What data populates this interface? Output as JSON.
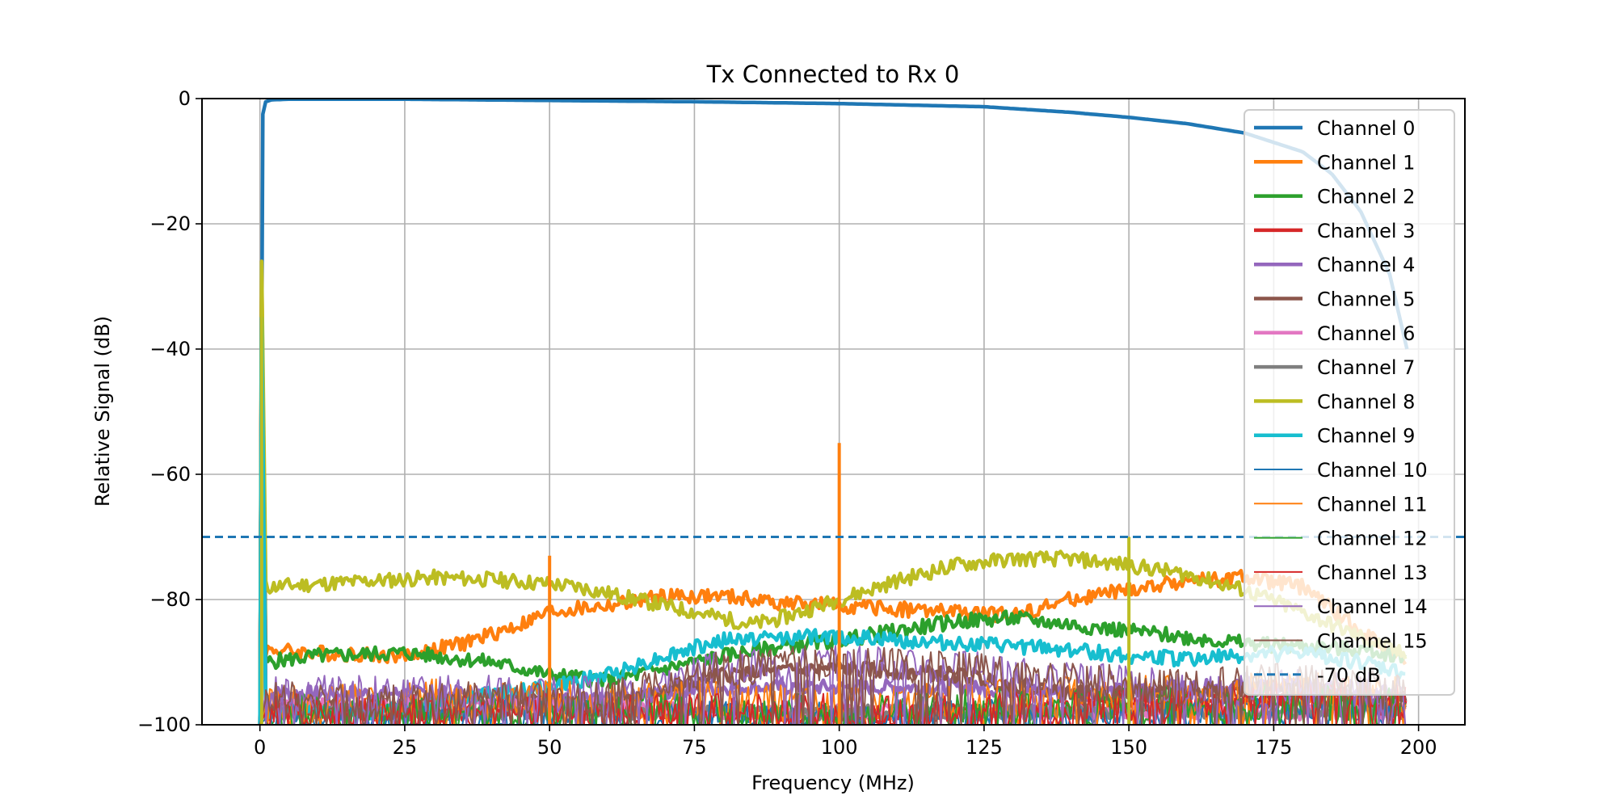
{
  "chart_data": {
    "type": "line",
    "title": "Tx Connected to Rx 0",
    "xlabel": "Frequency (MHz)",
    "ylabel": "Relative Signal (dB)",
    "xlim": [
      -10,
      208
    ],
    "ylim": [
      -100,
      0
    ],
    "xticks": [
      0,
      25,
      50,
      75,
      100,
      125,
      150,
      175,
      200
    ],
    "yticks": [
      -100,
      -80,
      -60,
      -40,
      -20,
      0
    ],
    "xtick_labels": [
      "0",
      "25",
      "50",
      "75",
      "100",
      "125",
      "150",
      "175",
      "200"
    ],
    "ytick_labels": [
      "−100",
      "−80",
      "−60",
      "−40",
      "−20",
      "0"
    ],
    "grid": true,
    "legend_position": "right, top-to-bottom",
    "reference_line": {
      "name": "-70 dB",
      "y": -70,
      "style": "dashed",
      "color": "#1f77b4"
    },
    "series": [
      {
        "name": "Channel 0",
        "color": "#1f77b4",
        "width": 4.5,
        "x": [
          0,
          0.2,
          0.5,
          1,
          2,
          5,
          10,
          25,
          50,
          75,
          100,
          125,
          140,
          150,
          160,
          170,
          180,
          185,
          190,
          195,
          198
        ],
        "y": [
          -100,
          -40,
          -2,
          -0.5,
          -0.2,
          -0.1,
          -0.1,
          -0.1,
          -0.3,
          -0.5,
          -0.8,
          -1.3,
          -2.2,
          -3,
          -4,
          -5.5,
          -8.5,
          -12,
          -18,
          -28,
          -40
        ]
      },
      {
        "name": "Channel 1",
        "color": "#ff7f0e",
        "width": 4.5,
        "x": [
          0,
          0.3,
          1,
          10,
          25,
          35,
          45,
          50,
          60,
          70,
          80,
          90,
          100,
          110,
          120,
          130,
          140,
          150,
          160,
          170,
          180,
          190,
          198
        ],
        "y": [
          -100,
          -26,
          -88,
          -88.5,
          -89,
          -87,
          -84,
          -82,
          -81,
          -79.5,
          -79.5,
          -80.5,
          -81,
          -81.5,
          -82,
          -82.5,
          -80,
          -78.5,
          -77,
          -76.5,
          -78,
          -85,
          -90
        ]
      },
      {
        "name": "Channel 2",
        "color": "#2ca02c",
        "width": 4.5,
        "x": [
          0,
          0.3,
          1,
          10,
          25,
          40,
          50,
          60,
          70,
          80,
          90,
          100,
          110,
          120,
          130,
          140,
          150,
          160,
          170,
          180,
          190,
          198
        ],
        "y": [
          -100,
          -30,
          -90,
          -89,
          -88.5,
          -90,
          -92,
          -93,
          -91,
          -89,
          -87.5,
          -86.5,
          -85,
          -83.5,
          -83,
          -84,
          -85,
          -86,
          -87,
          -87.5,
          -88,
          -89
        ]
      },
      {
        "name": "Channel 3",
        "color": "#d62728",
        "width": 4.5,
        "x": [
          0,
          0.3,
          1,
          20,
          40,
          50,
          60,
          80,
          100,
          120,
          140,
          160,
          180,
          198
        ],
        "y": [
          -100,
          -30,
          -98,
          -98,
          -98,
          -96,
          -98,
          -98,
          -99,
          -98,
          -97,
          -97,
          -96,
          -97
        ]
      },
      {
        "name": "Channel 4",
        "color": "#9467bd",
        "width": 4.5,
        "x": [
          0,
          0.3,
          1,
          20,
          40,
          50,
          60,
          80,
          100,
          120,
          140,
          160,
          180,
          198
        ],
        "y": [
          -100,
          -32,
          -95,
          -95,
          -95,
          -96,
          -96,
          -94,
          -94,
          -94,
          -95,
          -94,
          -94,
          -95
        ]
      },
      {
        "name": "Channel 5",
        "color": "#8c564b",
        "width": 4.5,
        "x": [
          0,
          0.3,
          1,
          20,
          40,
          50,
          60,
          80,
          100,
          120,
          140,
          160,
          180,
          198
        ],
        "y": [
          -100,
          -32,
          -97,
          -97,
          -96,
          -96,
          -97,
          -92,
          -91,
          -92,
          -95,
          -95,
          -94,
          -96
        ]
      },
      {
        "name": "Channel 6",
        "color": "#e377c2",
        "width": 4.5,
        "x": [
          0,
          0.3,
          1,
          20,
          40,
          50,
          60,
          80,
          100,
          120,
          140,
          160,
          180,
          198
        ],
        "y": [
          -100,
          -32,
          -97,
          -97,
          -97,
          -97,
          -97,
          -98,
          -98,
          -98,
          -98,
          -98,
          -98,
          -98
        ]
      },
      {
        "name": "Channel 7",
        "color": "#7f7f7f",
        "width": 4.5,
        "x": [
          0,
          0.3,
          1,
          20,
          40,
          50,
          60,
          80,
          100,
          120,
          140,
          160,
          180,
          198
        ],
        "y": [
          -100,
          -32,
          -98,
          -98,
          -98,
          -98,
          -98,
          -98,
          -98,
          -98,
          -98,
          -98,
          -98,
          -98
        ]
      },
      {
        "name": "Channel 8",
        "color": "#bcbd22",
        "width": 4.5,
        "x": [
          0,
          0.3,
          1,
          10,
          20,
          30,
          40,
          50,
          55,
          60,
          70,
          80,
          85,
          90,
          100,
          110,
          120,
          130,
          140,
          150,
          160,
          170,
          180,
          190,
          198
        ],
        "y": [
          -100,
          -26,
          -78,
          -77.5,
          -77,
          -76.5,
          -76.8,
          -77.5,
          -78,
          -79,
          -81,
          -83,
          -84,
          -83,
          -80,
          -77,
          -74.5,
          -73.5,
          -73.5,
          -74.5,
          -76,
          -78.5,
          -82,
          -86,
          -89
        ]
      },
      {
        "name": "Channel 9",
        "color": "#17becf",
        "width": 4.5,
        "x": [
          0,
          0.3,
          1,
          20,
          40,
          50,
          55,
          60,
          70,
          80,
          90,
          100,
          110,
          120,
          130,
          140,
          150,
          160,
          170,
          180,
          190,
          198
        ],
        "y": [
          -100,
          -35,
          -98,
          -98,
          -95,
          -94,
          -93,
          -92,
          -89,
          -86.5,
          -86,
          -86,
          -86.5,
          -87,
          -87.5,
          -88,
          -89,
          -89.5,
          -89,
          -88.5,
          -90,
          -92
        ]
      },
      {
        "name": "Channel 10",
        "color": "#1f77b4",
        "width": 2,
        "x": [
          0,
          1,
          40,
          80,
          120,
          160,
          170,
          180,
          190,
          198
        ],
        "y": [
          -100,
          -99,
          -99,
          -99,
          -99,
          -99,
          -98,
          -97,
          -98,
          -99
        ]
      },
      {
        "name": "Channel 11",
        "color": "#ff7f0e",
        "width": 2,
        "x": [
          0,
          1,
          20,
          40,
          60,
          80,
          100,
          120,
          140,
          160,
          180,
          198
        ],
        "y": [
          -100,
          -97,
          -96,
          -95,
          -96,
          -96,
          -97,
          -96,
          -95,
          -95,
          -94,
          -95
        ]
      },
      {
        "name": "Channel 12",
        "color": "#2ca02c",
        "width": 2,
        "x": [
          0,
          1,
          20,
          40,
          60,
          80,
          100,
          120,
          140,
          160,
          180,
          198
        ],
        "y": [
          -100,
          -98,
          -98,
          -98,
          -98,
          -98,
          -98,
          -97,
          -97,
          -97,
          -96,
          -97
        ]
      },
      {
        "name": "Channel 13",
        "color": "#d62728",
        "width": 2,
        "x": [
          0,
          1,
          20,
          40,
          60,
          80,
          100,
          120,
          140,
          160,
          180,
          198
        ],
        "y": [
          -100,
          -98,
          -98,
          -98,
          -98,
          -98,
          -98,
          -98,
          -97,
          -96,
          -95,
          -96
        ]
      },
      {
        "name": "Channel 14",
        "color": "#9467bd",
        "width": 2,
        "x": [
          0,
          1,
          20,
          40,
          60,
          80,
          100,
          120,
          140,
          160,
          180,
          198
        ],
        "y": [
          -100,
          -95,
          -95,
          -95,
          -95,
          -91,
          -90,
          -91,
          -93,
          -94,
          -94,
          -95
        ]
      },
      {
        "name": "Channel 15",
        "color": "#8c564b",
        "width": 2,
        "x": [
          0,
          1,
          20,
          40,
          60,
          80,
          100,
          120,
          140,
          160,
          180,
          198
        ],
        "y": [
          -100,
          -96,
          -96,
          -96,
          -96,
          -91,
          -90,
          -91,
          -93,
          -94,
          -93,
          -95
        ]
      }
    ],
    "spurs": [
      {
        "x": 0.3,
        "y": -26,
        "color": "#bcbd22"
      },
      {
        "x": 50,
        "y": -73,
        "color": "#ff7f0e"
      },
      {
        "x": 100,
        "y": -55,
        "color": "#ff7f0e"
      },
      {
        "x": 150,
        "y": -70,
        "color": "#bcbd22"
      }
    ]
  }
}
